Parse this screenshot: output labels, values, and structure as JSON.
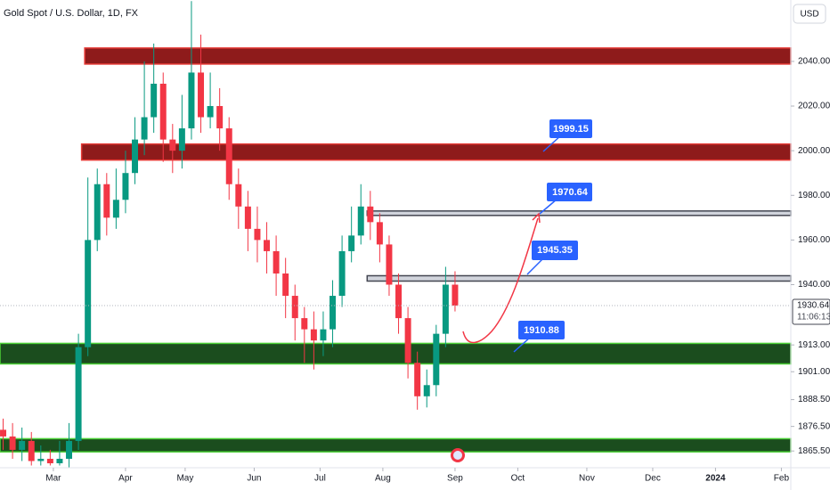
{
  "chart_data": {
    "type": "candlestick",
    "title": "Gold Spot / U.S. Dollar, 1D, FX",
    "currency": "USD",
    "last_price": {
      "value": 1930.64,
      "label": "1930.64"
    },
    "countdown": "11:06:13",
    "up_color": "#089981",
    "down_color": "#f23645",
    "grid": false,
    "xlim": [
      -17,
      235
    ],
    "ylim": [
      1858,
      2067.5
    ],
    "xticks": [
      {
        "value": 0,
        "label": "Mar"
      },
      {
        "value": 23,
        "label": "Apr"
      },
      {
        "value": 42,
        "label": "May"
      },
      {
        "value": 64,
        "label": "Jun"
      },
      {
        "value": 85,
        "label": "Jul"
      },
      {
        "value": 105,
        "label": "Aug"
      },
      {
        "value": 128,
        "label": "Sep"
      },
      {
        "value": 148,
        "label": "Oct"
      },
      {
        "value": 170,
        "label": "Nov"
      },
      {
        "value": 191,
        "label": "Dec"
      },
      {
        "value": 211,
        "label": "2024"
      },
      {
        "value": 232,
        "label": "Feb"
      }
    ],
    "yticks": [
      {
        "value": 2040,
        "label": "2040.00"
      },
      {
        "value": 2020,
        "label": "2020.00"
      },
      {
        "value": 2000,
        "label": "2000.00"
      },
      {
        "value": 1980,
        "label": "1980.00"
      },
      {
        "value": 1960,
        "label": "1960.00"
      },
      {
        "value": 1940,
        "label": "1940.00"
      },
      {
        "value": 1913,
        "label": "1913.00"
      },
      {
        "value": 1901,
        "label": "1901.00"
      },
      {
        "value": 1888.5,
        "label": "1888.50"
      },
      {
        "value": 1876.5,
        "label": "1876.50"
      },
      {
        "value": 1865.5,
        "label": "1865.50"
      }
    ],
    "x": [
      -16,
      -13,
      -10,
      -7,
      -4,
      -1,
      2,
      5,
      8,
      11,
      14,
      17,
      20,
      23,
      26,
      29,
      32,
      35,
      38,
      41,
      44,
      47,
      50,
      53,
      56,
      59,
      62,
      65,
      68,
      71,
      74,
      77,
      80,
      83,
      86,
      89,
      92,
      95,
      98,
      101,
      104,
      107,
      110,
      113,
      116,
      119,
      122,
      125,
      128
    ],
    "open": [
      1875,
      1872,
      1866,
      1870,
      1861,
      1862,
      1860,
      1862,
      1870,
      1912,
      1960,
      1985,
      1970,
      1978,
      1990,
      2005,
      2015,
      2030,
      2005,
      2000,
      2010,
      2035,
      2015,
      2020,
      2010,
      1985,
      1975,
      1965,
      1960,
      1955,
      1945,
      1935,
      1925,
      1920,
      1915,
      1920,
      1935,
      1955,
      1962,
      1975,
      1968,
      1958,
      1940,
      1925,
      1905,
      1890,
      1895,
      1918,
      1940
    ],
    "high": [
      1880,
      1878,
      1876,
      1874,
      1868,
      1866,
      1870,
      1878,
      1918,
      1988,
      1992,
      1990,
      1992,
      2000,
      2015,
      2040,
      2048,
      2035,
      2012,
      2025,
      2067,
      2052,
      2035,
      2028,
      2015,
      1992,
      1982,
      1975,
      1968,
      1962,
      1952,
      1940,
      1930,
      1928,
      1928,
      1942,
      1962,
      1975,
      1985,
      1982,
      1972,
      1962,
      1945,
      1930,
      1910,
      1902,
      1922,
      1948,
      1946
    ],
    "low": [
      1866,
      1862,
      1861,
      1859,
      1859,
      1859,
      1859,
      1858,
      1866,
      1908,
      1955,
      1962,
      1965,
      1972,
      1985,
      1998,
      2008,
      1995,
      1990,
      1992,
      2005,
      2008,
      2010,
      2000,
      1978,
      1965,
      1955,
      1950,
      1945,
      1935,
      1925,
      1915,
      1905,
      1902,
      1908,
      1912,
      1930,
      1950,
      1958,
      1960,
      1950,
      1935,
      1918,
      1898,
      1884,
      1885,
      1890,
      1912,
      1928
    ],
    "close": [
      1872,
      1866,
      1870,
      1861,
      1862,
      1860,
      1862,
      1870,
      1912,
      1960,
      1985,
      1970,
      1978,
      1990,
      2005,
      2015,
      2030,
      2005,
      2000,
      2010,
      2035,
      2015,
      2020,
      2010,
      1985,
      1975,
      1965,
      1960,
      1955,
      1945,
      1935,
      1925,
      1920,
      1915,
      1920,
      1935,
      1955,
      1962,
      1975,
      1968,
      1958,
      1940,
      1925,
      1905,
      1890,
      1895,
      1918,
      1940,
      1930.64
    ],
    "zones": [
      {
        "range": [
          2038.8,
          2046
        ],
        "start": 10,
        "fill": "#8e1b1b",
        "stroke": "#e53935"
      },
      {
        "range": [
          1995.8,
          2003
        ],
        "start": 9,
        "fill": "#8e1b1b",
        "stroke": "#e53935"
      },
      {
        "range": [
          1971,
          1973
        ],
        "start": 100,
        "fill": "#d1d4dc",
        "stroke": "#434651"
      },
      {
        "range": [
          1941.6,
          1944
        ],
        "start": 100,
        "fill": "#d1d4dc",
        "stroke": "#434651"
      },
      {
        "range": [
          1904.5,
          1913.7
        ],
        "start": -17,
        "fill": "#1b4d1e",
        "stroke": "#4cd137"
      },
      {
        "range": [
          1865.1,
          1871
        ],
        "start": -17,
        "fill": "#1b4d1e",
        "stroke": "#4cd137"
      }
    ],
    "annotations": [
      "1999.15",
      "1970.64",
      "1945.35",
      "1910.88"
    ]
  }
}
